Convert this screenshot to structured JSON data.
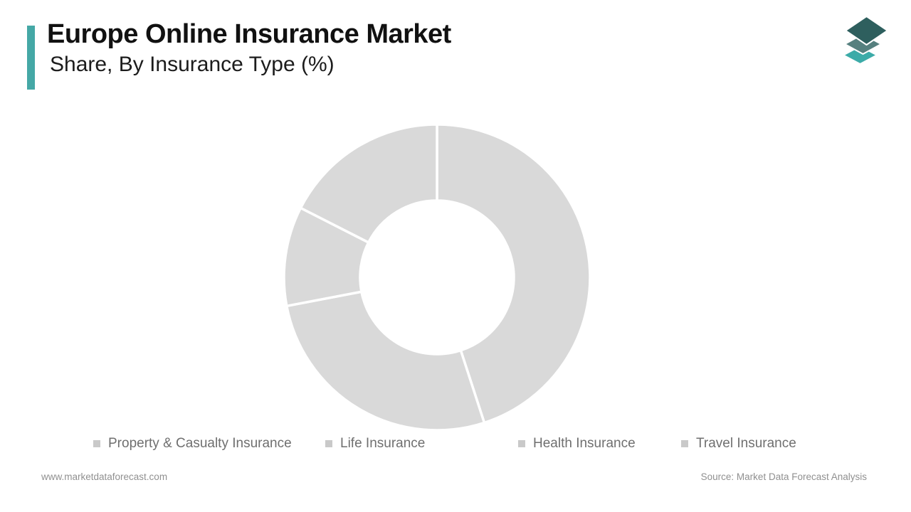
{
  "page": {
    "background": "#ffffff"
  },
  "header": {
    "title": "Europe Online Insurance Market",
    "subtitle": "Share, By Insurance Type (%)",
    "accent_color": "#45a8a6"
  },
  "logo": {
    "name": "market-data-forecast-logo",
    "layers": [
      "#3caba8",
      "#56807f",
      "#2e5f5e"
    ]
  },
  "chart_data": {
    "type": "pie",
    "subtype": "donut",
    "title": "Europe Online Insurance Market Share, By Insurance Type (%)",
    "categories": [
      "Property & Casualty Insurance",
      "Life Insurance",
      "Health Insurance",
      "Travel Insurance"
    ],
    "values": [
      45,
      27,
      10.5,
      17.5
    ],
    "unit": "%",
    "start_angle": "top",
    "direction": "clockwise",
    "inner_radius_ratio": 0.5,
    "slice_color": "#d9d9d9",
    "separator_color": "#ffffff",
    "legend_position": "bottom"
  },
  "legend": {
    "marker_color": "#c9c9c9",
    "text_color": "#6f6f6f",
    "items": [
      {
        "label": "Property & Casualty Insurance"
      },
      {
        "label": "Life Insurance"
      },
      {
        "label": "Health Insurance"
      },
      {
        "label": "Travel Insurance"
      }
    ]
  },
  "footer": {
    "website": "www.marketdataforecast.com",
    "source": "Source: Market Data Forecast Analysis"
  }
}
